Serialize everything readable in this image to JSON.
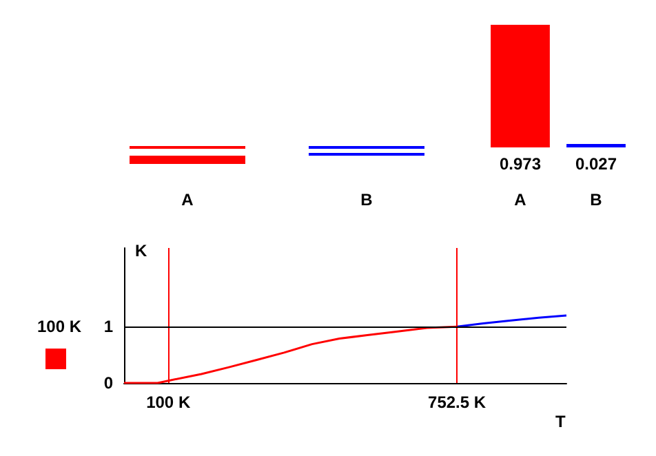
{
  "chart_data": [
    {
      "type": "other",
      "categories": [
        "A",
        "B"
      ],
      "colors": [
        "#ff0000",
        "#0000ff"
      ]
    },
    {
      "type": "bar",
      "categories": [
        "A",
        "B"
      ],
      "values": [
        0.973,
        0.027
      ],
      "colors": [
        "#ff0000",
        "#0000ff"
      ],
      "data_labels": true
    },
    {
      "type": "line",
      "xlabel": "T",
      "ylabel": "K",
      "xlim": [
        0,
        1000
      ],
      "ylim": [
        0,
        2.4
      ],
      "xticks": [
        {
          "value": 100,
          "label": "100 K"
        },
        {
          "value": 752.5,
          "label": "752.5 K"
        }
      ],
      "yticks": [
        0,
        1
      ],
      "marker": "none",
      "line_style": "solid",
      "annotations": [
        "100 K"
      ],
      "series": [
        {
          "color": "#ff0000",
          "x": [
            0,
            76,
            100,
            175,
            237,
            300,
            362,
            425,
            487,
            550,
            612,
            685,
            752.5
          ],
          "values": [
            0,
            0,
            0.04,
            0.16,
            0.28,
            0.41,
            0.54,
            0.69,
            0.79,
            0.85,
            0.91,
            0.98,
            1.0
          ]
        },
        {
          "color": "#0000ff",
          "x": [
            752.5,
            812,
            875,
            937,
            1000
          ],
          "values": [
            1.0,
            1.06,
            1.11,
            1.16,
            1.2
          ]
        }
      ],
      "ref_lines": [
        {
          "axis": "x",
          "value": 100,
          "color": "#ff0000"
        },
        {
          "axis": "x",
          "value": 752.5,
          "color": "#ff0000"
        },
        {
          "axis": "y",
          "value": 1,
          "color": "#000000"
        }
      ]
    }
  ]
}
